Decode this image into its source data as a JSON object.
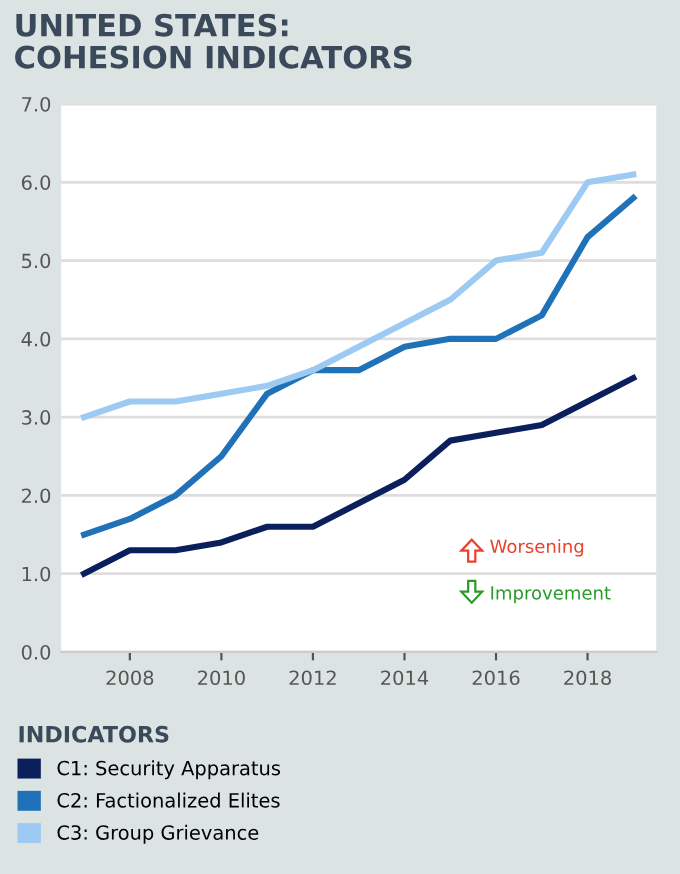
{
  "chart_data": {
    "type": "line",
    "title": "UNITED STATES:\nCOHESION INDICATORS",
    "legend_title": "INDICATORS",
    "x": [
      2007,
      2008,
      2009,
      2010,
      2011,
      2012,
      2013,
      2014,
      2015,
      2016,
      2017,
      2018,
      2019
    ],
    "series": [
      {
        "name": "C1: Security Apparatus",
        "color": "#0b1f5c",
        "values": [
          1.0,
          1.3,
          1.3,
          1.4,
          1.6,
          1.6,
          1.9,
          2.2,
          2.7,
          2.8,
          2.9,
          3.2,
          3.5
        ]
      },
      {
        "name": "C2: Factionalized Elites",
        "color": "#1f72b8",
        "values": [
          1.5,
          1.7,
          2.0,
          2.5,
          3.3,
          3.6,
          3.6,
          3.9,
          4.0,
          4.0,
          4.3,
          5.3,
          5.8
        ]
      },
      {
        "name": "C3: Group Grievance",
        "color": "#9dcaf2",
        "values": [
          3.0,
          3.2,
          3.2,
          3.3,
          3.4,
          3.6,
          3.9,
          4.2,
          4.5,
          5.0,
          5.1,
          6.0,
          6.1
        ]
      }
    ],
    "xlim": [
      2006.5,
      2019.5
    ],
    "xticks": [
      2008,
      2010,
      2012,
      2014,
      2016,
      2018
    ],
    "ylim": [
      0,
      7
    ],
    "yticks": [
      {
        "value": 0,
        "label": "0.0"
      },
      {
        "value": 1,
        "label": "1.0"
      },
      {
        "value": 2,
        "label": "2.0"
      },
      {
        "value": 3,
        "label": "3.0"
      },
      {
        "value": 4,
        "label": "4.0"
      },
      {
        "value": 5,
        "label": "5.0"
      },
      {
        "value": 6,
        "label": "6.0"
      },
      {
        "value": 7,
        "label": "7.0"
      }
    ],
    "annotations": [
      "Worsening",
      "Improvement"
    ],
    "grid": "y",
    "legend": "bottom",
    "marker": "none",
    "line_style": "solid"
  }
}
